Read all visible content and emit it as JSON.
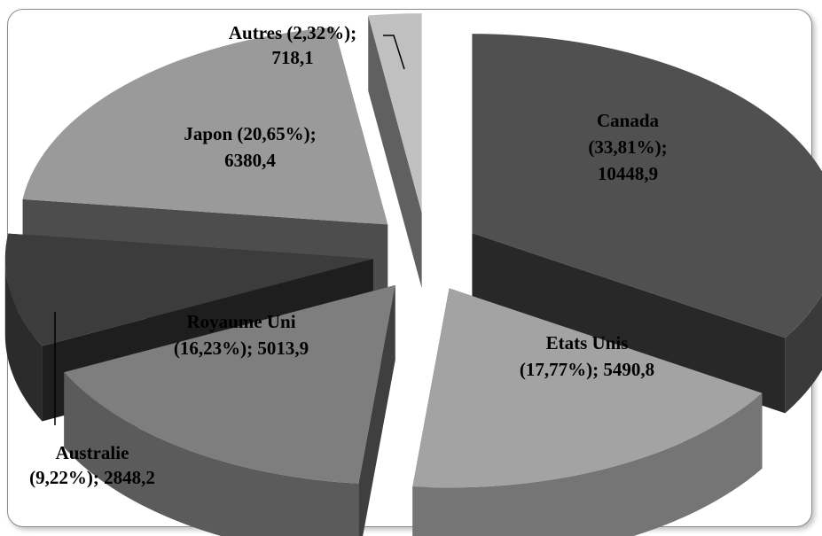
{
  "chart_data": {
    "type": "pie",
    "title": "",
    "exploded": true,
    "three_d": true,
    "categories": [
      "Canada",
      "Etats Unis",
      "Royaume Uni",
      "Australie",
      "Japon",
      "Autres"
    ],
    "values": [
      10448.9,
      5490.8,
      5013.9,
      2848.2,
      6380.4,
      718.1
    ],
    "percentages": [
      "33,81%",
      "17,77%",
      "16,23%",
      "9,22%",
      "20,65%",
      "2,32%"
    ],
    "labels": [
      {
        "category": "Canada",
        "lines": [
          "Canada",
          "(33,81%);",
          "10448,9"
        ]
      },
      {
        "category": "Etats Unis",
        "lines": [
          "Etats Unis",
          "(17,77%); 5490,8"
        ]
      },
      {
        "category": "Royaume Uni",
        "lines": [
          "Royaume Uni",
          "(16,23%); 5013,9"
        ]
      },
      {
        "category": "Australie",
        "lines": [
          "Australie",
          "(9,22%); 2848,2"
        ]
      },
      {
        "category": "Japon",
        "lines": [
          "Japon (20,65%);",
          "6380,4"
        ]
      },
      {
        "category": "Autres",
        "lines": [
          "Autres (2,32%);",
          "718,1"
        ]
      }
    ],
    "colors": {
      "Canada": "#505050",
      "Etats Unis": "#a3a3a3",
      "Royaume Uni": "#7e7e7e",
      "Australie": "#3c3c3c",
      "Japon": "#9a9a9a",
      "Autres": "#c0c0c0"
    }
  }
}
